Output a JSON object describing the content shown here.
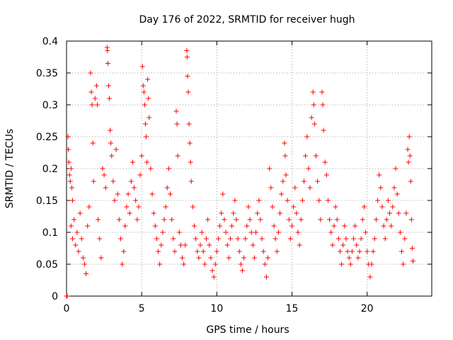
{
  "chart_data": {
    "type": "scatter",
    "title": "Day 176 of 2022, SRMTID for receiver hugh",
    "xlabel": "GPS time / hours",
    "ylabel": "SRMTID / TECUs",
    "xlim": [
      0,
      24.3
    ],
    "ylim": [
      0,
      0.4
    ],
    "xticks": [
      0,
      5,
      10,
      15,
      20
    ],
    "xtick_labels": [
      "0",
      "5",
      "10",
      "15",
      "20"
    ],
    "yticks": [
      0,
      0.05,
      0.1,
      0.15,
      0.2,
      0.25,
      0.3,
      0.35,
      0.4
    ],
    "ytick_labels": [
      "0",
      "0.05",
      "0.1",
      "0.15",
      "0.2",
      "0.25",
      "0.3",
      "0.35",
      "0.4"
    ],
    "grid": true,
    "marker": "plus",
    "color": "#ff0000",
    "series": [
      {
        "name": "SRMTID",
        "points": [
          [
            0.0,
            0.0
          ],
          [
            0.05,
            0.0
          ],
          [
            0.1,
            0.25
          ],
          [
            0.12,
            0.23
          ],
          [
            0.15,
            0.21
          ],
          [
            0.2,
            0.19
          ],
          [
            0.25,
            0.18
          ],
          [
            0.3,
            0.2
          ],
          [
            0.35,
            0.17
          ],
          [
            0.4,
            0.15
          ],
          [
            0.3,
            0.11
          ],
          [
            0.4,
            0.09
          ],
          [
            0.5,
            0.12
          ],
          [
            0.6,
            0.08
          ],
          [
            0.7,
            0.1
          ],
          [
            0.8,
            0.07
          ],
          [
            0.9,
            0.13
          ],
          [
            1.0,
            0.09
          ],
          [
            1.1,
            0.06
          ],
          [
            1.2,
            0.05
          ],
          [
            1.3,
            0.035
          ],
          [
            1.4,
            0.11
          ],
          [
            1.5,
            0.14
          ],
          [
            1.6,
            0.35
          ],
          [
            1.65,
            0.32
          ],
          [
            1.7,
            0.3
          ],
          [
            1.75,
            0.24
          ],
          [
            1.8,
            0.18
          ],
          [
            1.9,
            0.31
          ],
          [
            2.0,
            0.33
          ],
          [
            2.05,
            0.3
          ],
          [
            2.1,
            0.12
          ],
          [
            2.2,
            0.09
          ],
          [
            2.3,
            0.06
          ],
          [
            2.4,
            0.2
          ],
          [
            2.5,
            0.19
          ],
          [
            2.6,
            0.17
          ],
          [
            2.7,
            0.39
          ],
          [
            2.72,
            0.385
          ],
          [
            2.75,
            0.365
          ],
          [
            2.8,
            0.33
          ],
          [
            2.85,
            0.31
          ],
          [
            2.9,
            0.26
          ],
          [
            2.95,
            0.24
          ],
          [
            3.0,
            0.22
          ],
          [
            3.1,
            0.18
          ],
          [
            3.2,
            0.15
          ],
          [
            3.3,
            0.23
          ],
          [
            3.4,
            0.16
          ],
          [
            3.5,
            0.12
          ],
          [
            3.6,
            0.09
          ],
          [
            3.7,
            0.05
          ],
          [
            3.8,
            0.07
          ],
          [
            3.9,
            0.11
          ],
          [
            4.0,
            0.14
          ],
          [
            4.1,
            0.16
          ],
          [
            4.2,
            0.13
          ],
          [
            4.3,
            0.18
          ],
          [
            4.4,
            0.21
          ],
          [
            4.5,
            0.17
          ],
          [
            4.6,
            0.15
          ],
          [
            4.7,
            0.12
          ],
          [
            4.8,
            0.14
          ],
          [
            4.9,
            0.19
          ],
          [
            5.0,
            0.22
          ],
          [
            5.05,
            0.36
          ],
          [
            5.1,
            0.33
          ],
          [
            5.15,
            0.32
          ],
          [
            5.2,
            0.3
          ],
          [
            5.25,
            0.27
          ],
          [
            5.3,
            0.25
          ],
          [
            5.35,
            0.21
          ],
          [
            5.4,
            0.34
          ],
          [
            5.45,
            0.31
          ],
          [
            5.5,
            0.28
          ],
          [
            5.6,
            0.2
          ],
          [
            5.7,
            0.16
          ],
          [
            5.8,
            0.13
          ],
          [
            5.9,
            0.11
          ],
          [
            6.0,
            0.09
          ],
          [
            6.1,
            0.07
          ],
          [
            6.2,
            0.05
          ],
          [
            6.3,
            0.08
          ],
          [
            6.4,
            0.1
          ],
          [
            6.5,
            0.12
          ],
          [
            6.6,
            0.14
          ],
          [
            6.7,
            0.17
          ],
          [
            6.8,
            0.2
          ],
          [
            6.9,
            0.16
          ],
          [
            7.0,
            0.12
          ],
          [
            7.1,
            0.09
          ],
          [
            7.2,
            0.07
          ],
          [
            7.3,
            0.29
          ],
          [
            7.35,
            0.27
          ],
          [
            7.4,
            0.22
          ],
          [
            7.5,
            0.1
          ],
          [
            7.6,
            0.08
          ],
          [
            7.7,
            0.06
          ],
          [
            7.8,
            0.05
          ],
          [
            7.9,
            0.08
          ],
          [
            8.0,
            0.385
          ],
          [
            8.02,
            0.375
          ],
          [
            8.05,
            0.345
          ],
          [
            8.1,
            0.32
          ],
          [
            8.15,
            0.27
          ],
          [
            8.2,
            0.24
          ],
          [
            8.25,
            0.21
          ],
          [
            8.3,
            0.18
          ],
          [
            8.4,
            0.14
          ],
          [
            8.5,
            0.11
          ],
          [
            8.6,
            0.09
          ],
          [
            8.7,
            0.07
          ],
          [
            8.8,
            0.06
          ],
          [
            8.9,
            0.08
          ],
          [
            9.0,
            0.1
          ],
          [
            9.1,
            0.07
          ],
          [
            9.2,
            0.05
          ],
          [
            9.3,
            0.09
          ],
          [
            9.4,
            0.12
          ],
          [
            9.5,
            0.08
          ],
          [
            9.6,
            0.06
          ],
          [
            9.7,
            0.04
          ],
          [
            9.8,
            0.03
          ],
          [
            9.9,
            0.05
          ],
          [
            10.0,
            0.07
          ],
          [
            10.1,
            0.09
          ],
          [
            10.2,
            0.11
          ],
          [
            10.3,
            0.13
          ],
          [
            10.4,
            0.16
          ],
          [
            10.5,
            0.12
          ],
          [
            10.6,
            0.1
          ],
          [
            10.7,
            0.08
          ],
          [
            10.8,
            0.06
          ],
          [
            10.9,
            0.09
          ],
          [
            11.0,
            0.11
          ],
          [
            11.1,
            0.13
          ],
          [
            11.2,
            0.15
          ],
          [
            11.3,
            0.12
          ],
          [
            11.4,
            0.09
          ],
          [
            11.5,
            0.07
          ],
          [
            11.6,
            0.05
          ],
          [
            11.7,
            0.04
          ],
          [
            11.8,
            0.06
          ],
          [
            11.9,
            0.09
          ],
          [
            12.0,
            0.11
          ],
          [
            12.1,
            0.14
          ],
          [
            12.2,
            0.12
          ],
          [
            12.3,
            0.1
          ],
          [
            12.4,
            0.08
          ],
          [
            12.5,
            0.06
          ],
          [
            12.6,
            0.1
          ],
          [
            12.7,
            0.13
          ],
          [
            12.8,
            0.15
          ],
          [
            12.9,
            0.12
          ],
          [
            13.0,
            0.09
          ],
          [
            13.1,
            0.07
          ],
          [
            13.2,
            0.05
          ],
          [
            13.3,
            0.03
          ],
          [
            13.4,
            0.06
          ],
          [
            13.5,
            0.2
          ],
          [
            13.6,
            0.17
          ],
          [
            13.7,
            0.14
          ],
          [
            13.8,
            0.11
          ],
          [
            13.9,
            0.09
          ],
          [
            14.0,
            0.07
          ],
          [
            14.1,
            0.1
          ],
          [
            14.2,
            0.13
          ],
          [
            14.3,
            0.16
          ],
          [
            14.4,
            0.18
          ],
          [
            14.5,
            0.24
          ],
          [
            14.55,
            0.22
          ],
          [
            14.6,
            0.19
          ],
          [
            14.7,
            0.15
          ],
          [
            14.8,
            0.12
          ],
          [
            14.9,
            0.09
          ],
          [
            15.0,
            0.11
          ],
          [
            15.1,
            0.14
          ],
          [
            15.2,
            0.17
          ],
          [
            15.3,
            0.13
          ],
          [
            15.4,
            0.1
          ],
          [
            15.5,
            0.08
          ],
          [
            15.6,
            0.12
          ],
          [
            15.7,
            0.15
          ],
          [
            15.8,
            0.18
          ],
          [
            15.9,
            0.22
          ],
          [
            16.0,
            0.25
          ],
          [
            16.1,
            0.2
          ],
          [
            16.2,
            0.17
          ],
          [
            16.3,
            0.28
          ],
          [
            16.4,
            0.32
          ],
          [
            16.45,
            0.3
          ],
          [
            16.5,
            0.27
          ],
          [
            16.6,
            0.22
          ],
          [
            16.7,
            0.18
          ],
          [
            16.8,
            0.15
          ],
          [
            16.9,
            0.12
          ],
          [
            17.0,
            0.32
          ],
          [
            17.05,
            0.3
          ],
          [
            17.1,
            0.26
          ],
          [
            17.2,
            0.21
          ],
          [
            17.3,
            0.19
          ],
          [
            17.4,
            0.15
          ],
          [
            17.5,
            0.12
          ],
          [
            17.6,
            0.1
          ],
          [
            17.7,
            0.08
          ],
          [
            17.8,
            0.11
          ],
          [
            17.9,
            0.14
          ],
          [
            18.0,
            0.12
          ],
          [
            18.1,
            0.09
          ],
          [
            18.2,
            0.07
          ],
          [
            18.3,
            0.05
          ],
          [
            18.4,
            0.08
          ],
          [
            18.5,
            0.11
          ],
          [
            18.6,
            0.09
          ],
          [
            18.7,
            0.07
          ],
          [
            18.8,
            0.06
          ],
          [
            18.9,
            0.05
          ],
          [
            19.0,
            0.07
          ],
          [
            19.1,
            0.09
          ],
          [
            19.2,
            0.11
          ],
          [
            19.3,
            0.08
          ],
          [
            19.4,
            0.06
          ],
          [
            19.5,
            0.07
          ],
          [
            19.6,
            0.09
          ],
          [
            19.7,
            0.12
          ],
          [
            19.8,
            0.14
          ],
          [
            19.9,
            0.1
          ],
          [
            20.0,
            0.07
          ],
          [
            20.1,
            0.05
          ],
          [
            20.2,
            0.03
          ],
          [
            20.3,
            0.05
          ],
          [
            20.4,
            0.07
          ],
          [
            20.5,
            0.09
          ],
          [
            20.6,
            0.12
          ],
          [
            20.7,
            0.15
          ],
          [
            20.8,
            0.19
          ],
          [
            20.9,
            0.17
          ],
          [
            21.0,
            0.14
          ],
          [
            21.1,
            0.11
          ],
          [
            21.2,
            0.09
          ],
          [
            21.3,
            0.12
          ],
          [
            21.4,
            0.15
          ],
          [
            21.5,
            0.13
          ],
          [
            21.6,
            0.11
          ],
          [
            21.7,
            0.14
          ],
          [
            21.8,
            0.17
          ],
          [
            21.9,
            0.2
          ],
          [
            22.0,
            0.16
          ],
          [
            22.1,
            0.13
          ],
          [
            22.2,
            0.1
          ],
          [
            22.3,
            0.07
          ],
          [
            22.4,
            0.05
          ],
          [
            22.5,
            0.09
          ],
          [
            22.6,
            0.13
          ],
          [
            22.7,
            0.23
          ],
          [
            22.75,
            0.21
          ],
          [
            22.8,
            0.25
          ],
          [
            22.85,
            0.22
          ],
          [
            22.9,
            0.18
          ],
          [
            22.95,
            0.12
          ],
          [
            23.0,
            0.075
          ],
          [
            23.05,
            0.055
          ]
        ]
      }
    ]
  }
}
